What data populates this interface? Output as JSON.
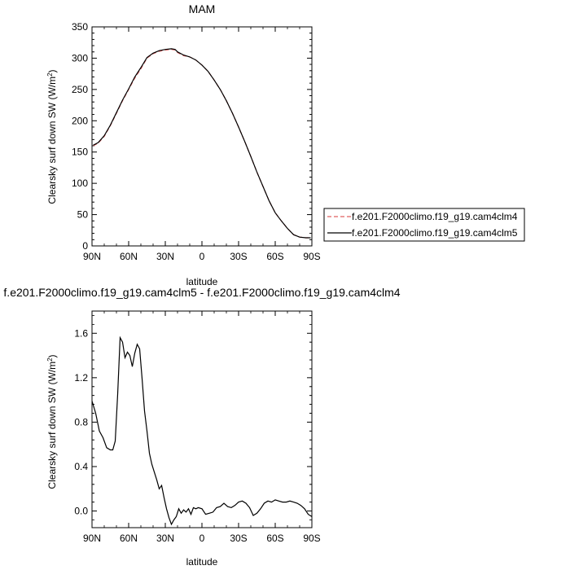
{
  "chart_data": [
    {
      "type": "line",
      "title": "MAM",
      "xlabel": "latitude",
      "ylabel": "Clearsky surf down SW (W/m²)",
      "ylabel_base": "Clearsky surf down SW (W/m",
      "ylabel_sup": "2",
      "ylabel_end": ")",
      "xlim": [
        90,
        -90
      ],
      "ylim": [
        0,
        350
      ],
      "x_ticks": [
        90,
        60,
        30,
        0,
        -30,
        -60,
        -90
      ],
      "x_tick_labels": [
        "90N",
        "60N",
        "30N",
        "0",
        "30S",
        "60S",
        "90S"
      ],
      "y_ticks": [
        0,
        50,
        100,
        150,
        200,
        250,
        300,
        350
      ],
      "y_tick_labels": [
        "0",
        "50",
        "100",
        "150",
        "200",
        "250",
        "300",
        "350"
      ],
      "legend_placement": "right",
      "series": [
        {
          "name": "f.e201.F2000climo.f19_g19.cam4clm4",
          "color": "#e06060",
          "style": "dashed",
          "x": [
            89,
            85,
            80,
            75,
            70,
            65,
            60,
            55,
            50,
            45,
            40,
            35,
            30,
            25,
            22,
            20,
            15,
            10,
            5,
            0,
            -5,
            -10,
            -15,
            -20,
            -25,
            -30,
            -35,
            -40,
            -45,
            -50,
            -55,
            -60,
            -65,
            -70,
            -75,
            -80,
            -85,
            -89
          ],
          "y": [
            160,
            164,
            175,
            192,
            212,
            232,
            250,
            268,
            283,
            300,
            307,
            311,
            313,
            314,
            313,
            309,
            304,
            302,
            297,
            289,
            279,
            265,
            250,
            232,
            212,
            190,
            167,
            143,
            118,
            95,
            72,
            53,
            40,
            28,
            18,
            14,
            13,
            13
          ]
        },
        {
          "name": "f.e201.F2000climo.f19_g19.cam4clm5",
          "color": "#000000",
          "style": "solid",
          "x": [
            89,
            85,
            80,
            75,
            70,
            65,
            60,
            55,
            50,
            45,
            40,
            35,
            30,
            25,
            22,
            20,
            15,
            10,
            5,
            0,
            -5,
            -10,
            -15,
            -20,
            -25,
            -30,
            -35,
            -40,
            -45,
            -50,
            -55,
            -60,
            -65,
            -70,
            -75,
            -80,
            -85,
            -89
          ],
          "y": [
            161,
            165,
            176,
            193,
            213,
            233,
            251,
            270,
            285,
            301,
            308,
            312,
            314,
            315,
            314,
            310,
            305,
            302,
            297,
            289,
            279,
            265,
            250,
            232,
            212,
            190,
            167,
            143,
            118,
            95,
            72,
            53,
            40,
            28,
            18,
            14,
            13,
            13
          ]
        }
      ]
    },
    {
      "type": "line",
      "title": "f.e201.F2000climo.f19_g19.cam4clm5 - f.e201.F2000climo.f19_g19.cam4clm4",
      "xlabel": "latitude",
      "ylabel": "Clearsky surf down SW (W/m²)",
      "ylabel_base": "Clearsky surf down SW (W/m",
      "ylabel_sup": "2",
      "ylabel_end": ")",
      "xlim": [
        90,
        -90
      ],
      "ylim": [
        -0.15,
        1.8
      ],
      "x_ticks": [
        90,
        60,
        30,
        0,
        -30,
        -60,
        -90
      ],
      "x_tick_labels": [
        "90N",
        "60N",
        "30N",
        "0",
        "30S",
        "60S",
        "90S"
      ],
      "y_ticks": [
        0.0,
        0.4,
        0.8,
        1.2,
        1.6
      ],
      "y_tick_labels": [
        "0.0",
        "0.4",
        "0.8",
        "1.2",
        "1.6"
      ],
      "series": [
        {
          "name": "",
          "color": "#000000",
          "style": "solid",
          "x": [
            90,
            87,
            84,
            81,
            78,
            75,
            73,
            71,
            69,
            67,
            65,
            63,
            61,
            59,
            57,
            55,
            53,
            51,
            49,
            47,
            45,
            43,
            41,
            39,
            37,
            35,
            33,
            31,
            29,
            27,
            25,
            23,
            21,
            19,
            17,
            15,
            13,
            11,
            9,
            7,
            5,
            3,
            0,
            -3,
            -6,
            -9,
            -12,
            -15,
            -18,
            -21,
            -24,
            -27,
            -30,
            -33,
            -36,
            -39,
            -42,
            -45,
            -48,
            -51,
            -54,
            -57,
            -60,
            -63,
            -66,
            -69,
            -72,
            -75,
            -78,
            -81,
            -84,
            -87,
            -90
          ],
          "y": [
            0.99,
            0.88,
            0.72,
            0.66,
            0.57,
            0.55,
            0.55,
            0.63,
            1.05,
            1.56,
            1.52,
            1.38,
            1.43,
            1.4,
            1.3,
            1.42,
            1.5,
            1.46,
            1.19,
            0.9,
            0.72,
            0.52,
            0.42,
            0.35,
            0.28,
            0.2,
            0.23,
            0.12,
            0.02,
            -0.06,
            -0.12,
            -0.08,
            -0.05,
            0.02,
            -0.02,
            0.01,
            -0.01,
            0.02,
            -0.03,
            0.03,
            0.02,
            0.03,
            0.02,
            -0.03,
            -0.02,
            -0.01,
            0.03,
            0.04,
            0.07,
            0.04,
            0.03,
            0.05,
            0.08,
            0.09,
            0.07,
            0.03,
            -0.04,
            -0.02,
            0.02,
            0.07,
            0.09,
            0.08,
            0.1,
            0.09,
            0.08,
            0.08,
            0.09,
            0.08,
            0.07,
            0.05,
            0.02,
            -0.03,
            -0.05
          ]
        }
      ]
    }
  ]
}
